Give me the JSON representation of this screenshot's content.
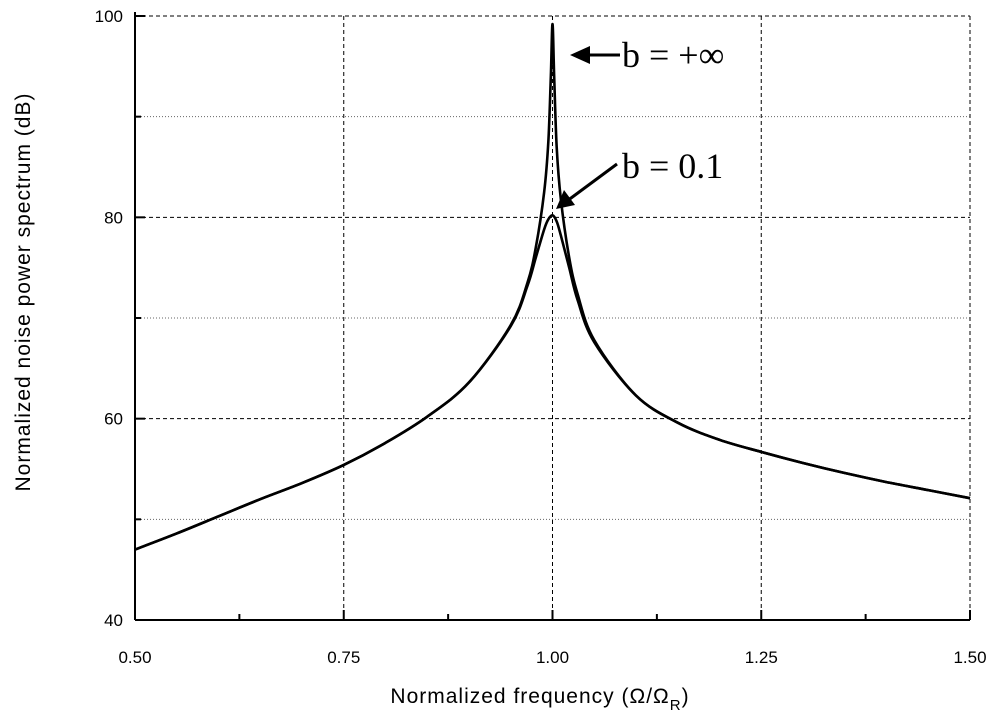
{
  "chart_data": {
    "type": "line",
    "xlabel": "Normalized frequency (Ω/Ω",
    "xlabel_sub": "R",
    "xlabel_close": ")",
    "ylabel": "Normalized noise power spectrum  (dB)",
    "xlim": [
      0.5,
      1.5
    ],
    "ylim": [
      40,
      100
    ],
    "x_ticks": [
      "0.50",
      "0.75",
      "1.00",
      "1.25",
      "1.50"
    ],
    "y_ticks": [
      "40",
      "60",
      "80",
      "100"
    ],
    "grid": true,
    "series": [
      {
        "x": [
          0.5,
          0.55,
          0.6,
          0.65,
          0.7,
          0.75,
          0.8,
          0.85,
          0.9,
          0.95,
          0.97,
          0.98,
          0.99,
          0.995,
          0.998,
          1.0,
          1.002,
          1.005,
          1.01,
          1.02,
          1.03,
          1.05,
          1.1,
          1.15,
          1.2,
          1.25,
          1.3,
          1.35,
          1.4,
          1.45,
          1.5
        ],
        "y": [
          47,
          48.6,
          50.3,
          52.0,
          53.6,
          55.4,
          57.6,
          60.2,
          63.6,
          69.3,
          73.5,
          77.0,
          82.5,
          87.5,
          94,
          99.2,
          94,
          87,
          81.8,
          76.0,
          72.4,
          67.8,
          62.3,
          59.6,
          57.9,
          56.7,
          55.6,
          54.6,
          53.7,
          52.9,
          52.1
        ]
      },
      {
        "x": [
          0.5,
          0.55,
          0.6,
          0.65,
          0.7,
          0.75,
          0.8,
          0.85,
          0.9,
          0.95,
          0.97,
          0.98,
          0.99,
          0.995,
          1.0,
          1.005,
          1.01,
          1.02,
          1.03,
          1.05,
          1.1,
          1.15,
          1.2,
          1.25,
          1.3,
          1.35,
          1.4,
          1.45,
          1.5
        ],
        "y": [
          47,
          48.6,
          50.3,
          52.0,
          53.6,
          55.4,
          57.6,
          60.2,
          63.6,
          69.2,
          73.2,
          76.0,
          78.8,
          79.8,
          80.2,
          79.6,
          78.2,
          75.0,
          71.8,
          67.6,
          62.3,
          59.6,
          57.9,
          56.7,
          55.6,
          54.6,
          53.7,
          52.9,
          52.1
        ]
      }
    ],
    "annotations": [
      {
        "text": "b = +∞",
        "x": 1.0,
        "y": 99
      },
      {
        "text": "b = 0.1",
        "x": 1.0,
        "y": 80
      }
    ]
  }
}
